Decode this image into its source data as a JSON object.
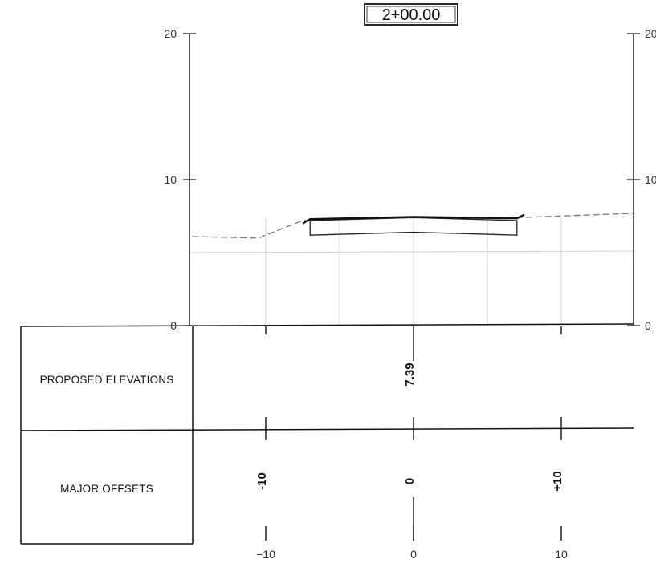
{
  "station_label": "2+00.00",
  "elevation_axis": {
    "left_ticks": [
      {
        "value": 20,
        "label": "20"
      },
      {
        "value": 10,
        "label": "10"
      },
      {
        "value": 0,
        "label": "0"
      }
    ],
    "right_ticks": [
      {
        "value": 20,
        "label": "20"
      },
      {
        "value": 10,
        "label": "10"
      },
      {
        "value": 0,
        "label": "0"
      }
    ]
  },
  "offset_axis": {
    "ticks": [
      {
        "value": -10,
        "label": "−10"
      },
      {
        "value": 0,
        "label": "0"
      },
      {
        "value": 10,
        "label": "10"
      }
    ]
  },
  "table": {
    "rows": [
      {
        "label": "PROPOSED ELEVATIONS"
      },
      {
        "label": "MAJOR OFFSETS"
      }
    ],
    "proposed_elevations": [
      {
        "offset": 0,
        "text": "7.39"
      }
    ],
    "major_offsets": [
      {
        "offset": -10,
        "text": "-10"
      },
      {
        "offset": 0,
        "text": "0"
      },
      {
        "offset": 10,
        "text": "+10"
      }
    ]
  },
  "profile": {
    "existing_ground": [
      [
        -15,
        6.1
      ],
      [
        -10.5,
        6.0
      ],
      [
        -7.5,
        7.2
      ],
      [
        0,
        7.4
      ],
      [
        7,
        7.4
      ],
      [
        15,
        7.7
      ]
    ],
    "proposed_surface": [
      [
        -7.5,
        7.0
      ],
      [
        -7,
        7.3
      ],
      [
        0,
        7.45
      ],
      [
        7,
        7.35
      ],
      [
        7.5,
        7.6
      ]
    ],
    "proposed_box": {
      "top": [
        [
          -7,
          7.2
        ],
        [
          0,
          7.4
        ],
        [
          7,
          7.2
        ]
      ],
      "bottom": [
        [
          -7,
          6.2
        ],
        [
          0,
          6.4
        ],
        [
          7,
          6.2
        ]
      ]
    },
    "reference_elevation": 5.0,
    "grid_offsets": [
      -10,
      -5,
      0,
      5,
      10
    ]
  }
}
